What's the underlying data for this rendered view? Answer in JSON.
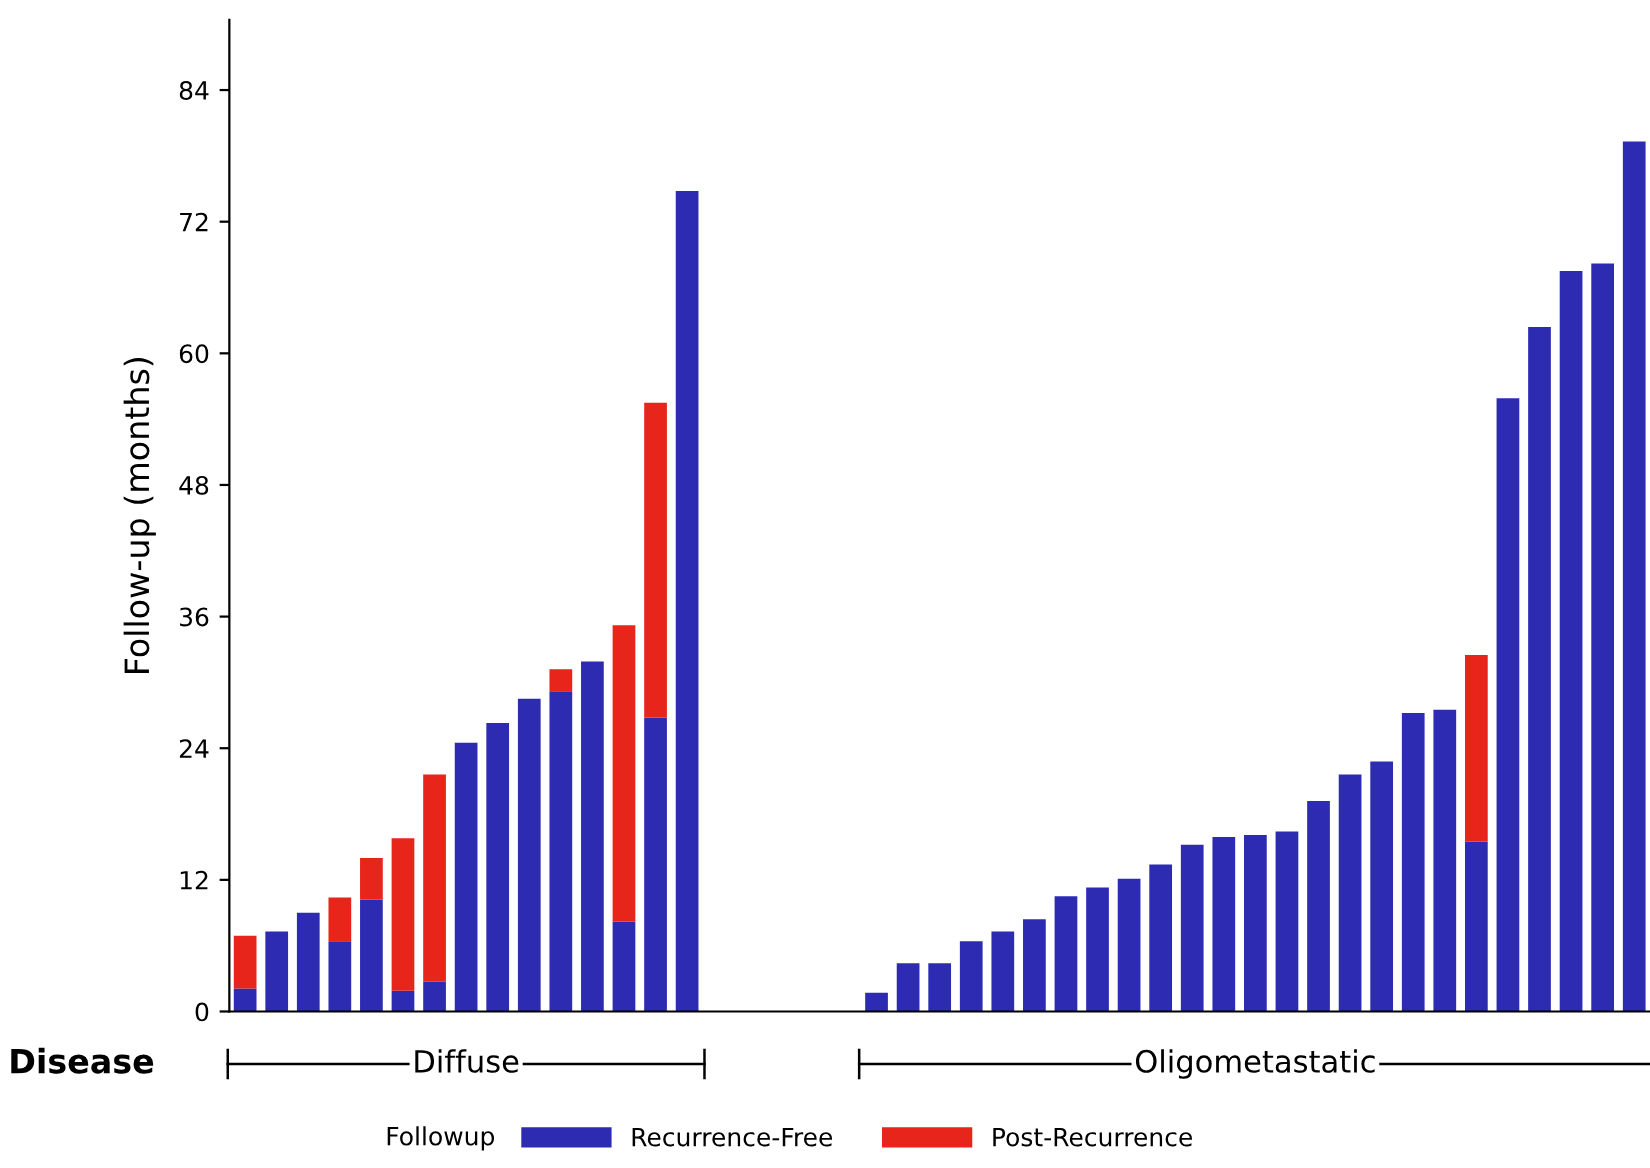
{
  "chart_data": {
    "type": "bar",
    "stacked": true,
    "ylabel": "Follow-up (months)",
    "xlabel": "Disease",
    "legend_title": "Followup",
    "legend": "bottom",
    "categories": [
      null,
      null,
      null,
      null,
      null,
      null,
      null,
      null,
      null,
      null,
      null,
      null,
      null,
      null,
      null,
      null,
      null,
      null,
      null,
      null,
      null,
      null,
      null,
      null,
      null,
      null,
      null,
      null,
      null,
      null,
      null,
      null,
      null,
      null,
      null,
      null,
      null,
      null,
      null,
      null,
      null,
      null,
      null,
      null,
      null
    ],
    "series": [
      {
        "name": "Recurrence-Free",
        "color": "#2e2bb3",
        "values": [
          2.1,
          7.3,
          9.0,
          6.4,
          10.2,
          1.9,
          2.7,
          24.5,
          26.3,
          28.5,
          29.2,
          31.9,
          8.2,
          26.8,
          74.8,
          null,
          null,
          null,
          null,
          null,
          1.7,
          4.4,
          4.4,
          6.4,
          7.3,
          8.4,
          10.5,
          11.3,
          12.1,
          13.4,
          15.2,
          15.9,
          16.1,
          16.4,
          19.2,
          21.6,
          22.8,
          27.2,
          27.5,
          15.5,
          55.9,
          62.4,
          67.5,
          68.2,
          79.3
        ]
      },
      {
        "name": "Post-Recurrence",
        "color": "#e8251a",
        "values": [
          4.8,
          0,
          0,
          4.0,
          3.8,
          13.9,
          18.9,
          0,
          0,
          0,
          2.0,
          0,
          27.0,
          28.7,
          0,
          null,
          null,
          null,
          null,
          null,
          0,
          0,
          0,
          0,
          0,
          0,
          0,
          0,
          0,
          0,
          0,
          0,
          0,
          0,
          0,
          0,
          0,
          0,
          0,
          17.0,
          0,
          0,
          0,
          0,
          0
        ]
      }
    ],
    "annotations": [
      "Diffuse",
      "Oligometastatic"
    ],
    "ylim": [
      0,
      90.4
    ],
    "yticks": [
      0,
      12,
      24,
      36,
      48,
      60,
      72,
      84
    ],
    "grid": false
  }
}
